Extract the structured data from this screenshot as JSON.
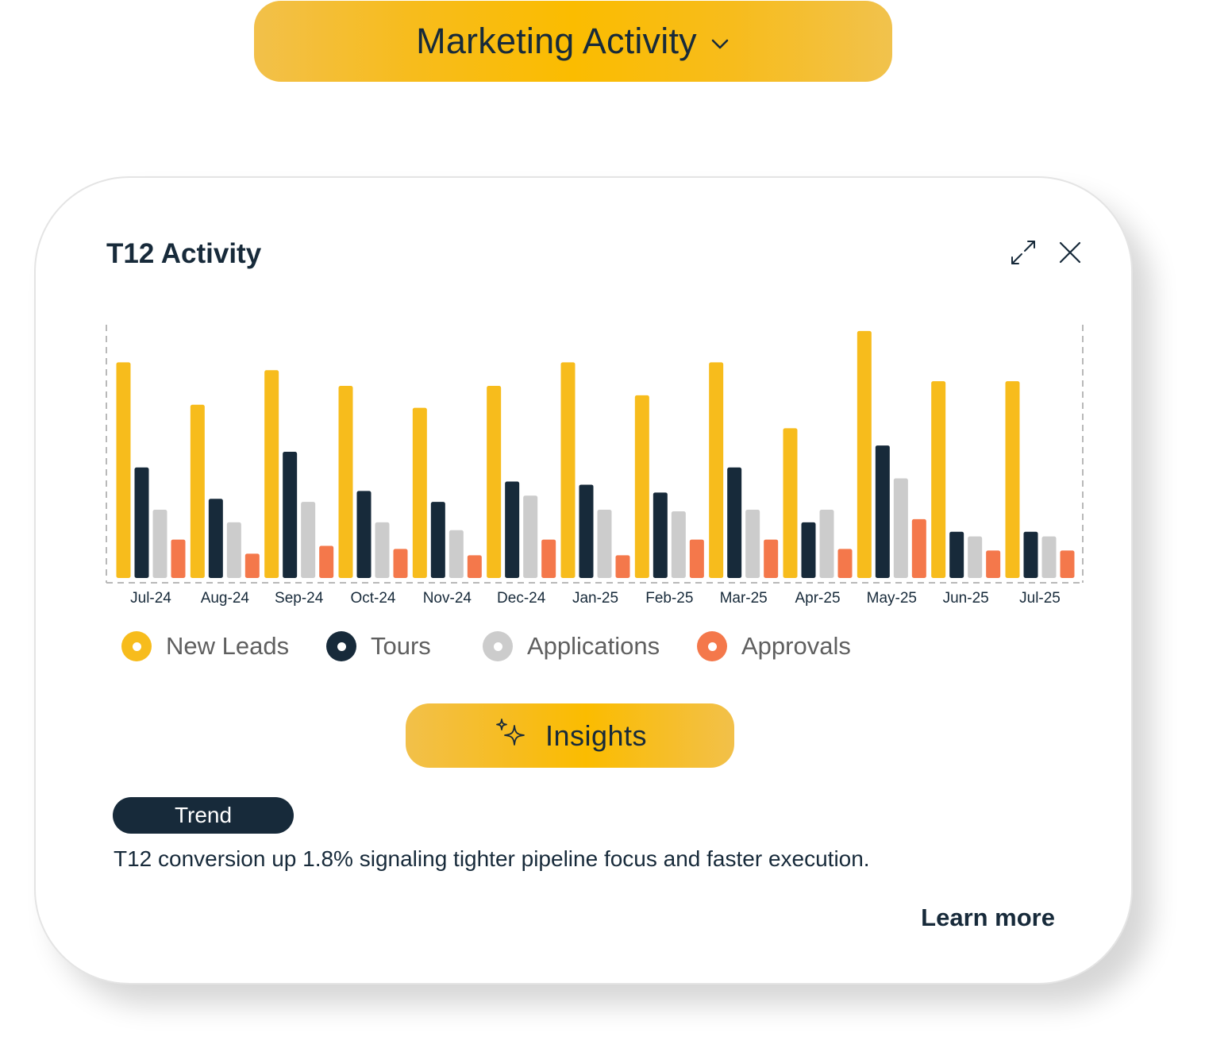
{
  "header": {
    "dropdown_label": "Marketing Activity",
    "dropdown_icon": "chevron-down-icon"
  },
  "card": {
    "title": "T12 Activity",
    "expand_icon": "expand-icon",
    "close_icon": "close-icon"
  },
  "colors": {
    "accent": "#fbbc00",
    "navy": "#172a3a",
    "new_leads": "#f7bc1c",
    "tours": "#172a3a",
    "applications": "#cccccc",
    "approvals": "#f4784b"
  },
  "chart_data": {
    "type": "bar",
    "title": "T12 Activity",
    "xlabel": "",
    "ylabel": "",
    "grid": false,
    "legend_position": "bottom-left",
    "ylim": [
      0,
      160
    ],
    "categories": [
      "Jul-24",
      "Aug-24",
      "Sep-24",
      "Oct-24",
      "Nov-24",
      "Dec-24",
      "Jan-25",
      "Feb-25",
      "Mar-25",
      "Apr-25",
      "May-25",
      "Jun-25",
      "Jul-25"
    ],
    "series": [
      {
        "name": "New Leads",
        "color": "#f7bc1c",
        "values": [
          136,
          109,
          131,
          121,
          107,
          121,
          136,
          115,
          136,
          94,
          156,
          124,
          124
        ]
      },
      {
        "name": "Tours",
        "color": "#172a3a",
        "values": [
          69,
          49,
          79,
          54,
          47,
          60,
          58,
          53,
          69,
          34,
          83,
          28,
          28
        ]
      },
      {
        "name": "Applications",
        "color": "#cccccc",
        "values": [
          42,
          34,
          47,
          34,
          29,
          51,
          42,
          41,
          42,
          42,
          62,
          25,
          25
        ]
      },
      {
        "name": "Approvals",
        "color": "#f4784b",
        "values": [
          23,
          14,
          19,
          17,
          13,
          23,
          13,
          23,
          23,
          17,
          36,
          16,
          16
        ]
      }
    ]
  },
  "insights": {
    "button_label": "Insights",
    "button_icon": "sparkle-icon",
    "badge": "Trend",
    "text": "T12 conversion up 1.8% signaling tighter pipeline focus and faster execution.",
    "link": "Learn more"
  }
}
